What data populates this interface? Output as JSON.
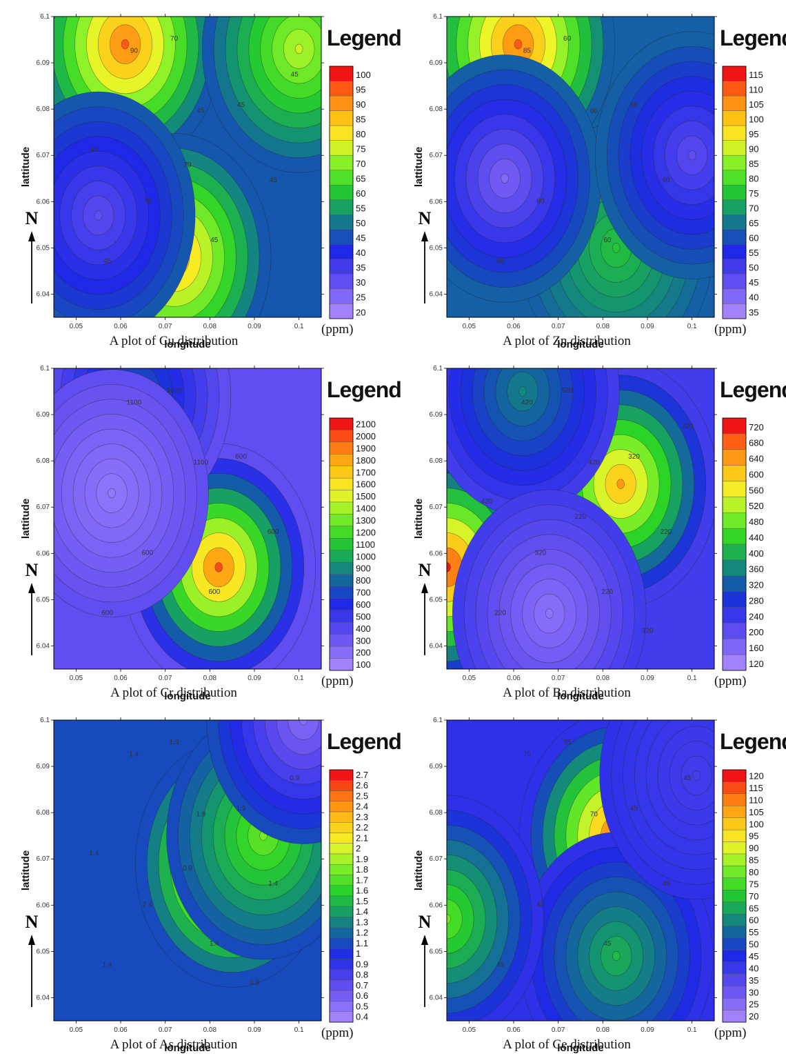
{
  "common": {
    "xlabel": "longitude",
    "ylabel": "lattitude",
    "legend_title": "Legend",
    "unit": "(ppm)",
    "north": "N",
    "x_ticks": [
      "0.05",
      "0.06",
      "0.07",
      "0.08",
      "0.09",
      "0.1"
    ],
    "y_ticks": [
      "6.1",
      "6.09",
      "6.08",
      "6.07",
      "6.06",
      "6.05",
      "6.04"
    ]
  },
  "chart_data": [
    {
      "type": "heatmap",
      "title": "A plot of Cu distribution",
      "xlabel": "longitude",
      "ylabel": "lattitude",
      "unit": "(ppm)",
      "xlim": [
        0.045,
        0.105
      ],
      "ylim": [
        6.035,
        6.1
      ],
      "legend_levels": [
        100,
        95,
        90,
        85,
        80,
        75,
        70,
        65,
        60,
        55,
        50,
        45,
        40,
        35,
        30,
        25,
        20
      ],
      "contour_labels": [
        "90",
        "70",
        "45",
        "45",
        "70",
        "45",
        "45",
        "45",
        "45",
        "70",
        "45"
      ],
      "hotspots": [
        {
          "x": 0.061,
          "y": 6.094,
          "value": 95
        },
        {
          "x": 0.072,
          "y": 6.048,
          "value": 90
        },
        {
          "x": 0.1,
          "y": 6.093,
          "value": 75
        },
        {
          "x": 0.055,
          "y": 6.057,
          "value": 30
        }
      ],
      "background_value": 46
    },
    {
      "type": "heatmap",
      "title": "A plot of Zn distribution",
      "xlabel": "longitude",
      "ylabel": "lattitude",
      "unit": "(ppm)",
      "xlim": [
        0.045,
        0.105
      ],
      "ylim": [
        6.035,
        6.1
      ],
      "legend_levels": [
        115,
        110,
        105,
        100,
        95,
        90,
        85,
        80,
        75,
        70,
        65,
        60,
        55,
        50,
        45,
        40,
        35
      ],
      "contour_labels": [
        "85",
        "60",
        "60",
        "60",
        "60",
        "60",
        "60",
        "60"
      ],
      "hotspots": [
        {
          "x": 0.061,
          "y": 6.094,
          "value": 110
        },
        {
          "x": 0.083,
          "y": 6.05,
          "value": 75
        },
        {
          "x": 0.058,
          "y": 6.065,
          "value": 40
        },
        {
          "x": 0.1,
          "y": 6.07,
          "value": 45
        }
      ],
      "background_value": 62
    },
    {
      "type": "heatmap",
      "title": "A plot of Cr distribution",
      "xlabel": "longitude",
      "ylabel": "lattitude",
      "unit": "(ppm)",
      "xlim": [
        0.045,
        0.105
      ],
      "ylim": [
        6.035,
        6.1
      ],
      "legend_levels": [
        2100,
        2000,
        1900,
        1800,
        1700,
        1600,
        1500,
        1400,
        1300,
        1200,
        1100,
        1000,
        900,
        800,
        700,
        600,
        500,
        400,
        300,
        200,
        100
      ],
      "contour_labels": [
        "1100",
        "1600",
        "1100",
        "600",
        "600",
        "600",
        "600",
        "600"
      ],
      "hotspots": [
        {
          "x": 0.082,
          "y": 6.057,
          "value": 2000
        },
        {
          "x": 0.063,
          "y": 6.094,
          "value": 800
        },
        {
          "x": 0.058,
          "y": 6.073,
          "value": 150
        }
      ],
      "background_value": 350
    },
    {
      "type": "heatmap",
      "title": "A plot of Ba distribution",
      "xlabel": "longitude",
      "ylabel": "lattitude",
      "unit": "(ppm)",
      "xlim": [
        0.045,
        0.105
      ],
      "ylim": [
        6.035,
        6.1
      ],
      "legend_levels": [
        720,
        680,
        640,
        600,
        560,
        520,
        480,
        440,
        400,
        360,
        320,
        280,
        240,
        200,
        160,
        120
      ],
      "contour_labels": [
        "420",
        "520",
        "420",
        "320",
        "320",
        "220",
        "220",
        "220",
        "220",
        "220",
        "420",
        "320"
      ],
      "hotspots": [
        {
          "x": 0.084,
          "y": 6.075,
          "value": 640
        },
        {
          "x": 0.045,
          "y": 6.057,
          "value": 720
        },
        {
          "x": 0.062,
          "y": 6.095,
          "value": 360
        },
        {
          "x": 0.068,
          "y": 6.047,
          "value": 140
        }
      ],
      "background_value": 230
    },
    {
      "type": "heatmap",
      "title": "A plot of As distribution",
      "xlabel": "longitude",
      "ylabel": "lattitude",
      "unit": "(ppm)",
      "xlim": [
        0.045,
        0.105
      ],
      "ylim": [
        6.035,
        6.1
      ],
      "legend_levels": [
        2.7,
        2.6,
        2.5,
        2.4,
        2.3,
        2.2,
        2.1,
        2,
        1.9,
        1.8,
        1.7,
        1.6,
        1.5,
        1.4,
        1.3,
        1.2,
        1.1,
        1,
        0.9,
        0.8,
        0.7,
        0.6,
        0.5,
        0.4
      ],
      "contour_labels": [
        "1.4",
        "1.9",
        "1.9",
        "1.9",
        "2.4",
        "1.4",
        "1.4",
        "1.4",
        "0.9",
        "0.9",
        "1.4",
        "0.9"
      ],
      "hotspots": [
        {
          "x": 0.085,
          "y": 6.069,
          "value": 2.6
        },
        {
          "x": 0.092,
          "y": 6.075,
          "value": 1.8
        },
        {
          "x": 0.101,
          "y": 6.1,
          "value": 0.5
        }
      ],
      "background_value": 1.1
    },
    {
      "type": "heatmap",
      "title": "A plot of Ce distribution",
      "xlabel": "longitude",
      "ylabel": "lattitude",
      "unit": "(ppm)",
      "xlim": [
        0.045,
        0.105
      ],
      "ylim": [
        6.035,
        6.1
      ],
      "legend_levels": [
        120,
        115,
        110,
        105,
        100,
        95,
        90,
        85,
        80,
        75,
        70,
        65,
        60,
        55,
        50,
        45,
        40,
        35,
        30,
        25,
        20
      ],
      "contour_labels": [
        "70",
        "95",
        "70",
        "45",
        "45",
        "45",
        "45",
        "45",
        "45"
      ],
      "hotspots": [
        {
          "x": 0.083,
          "y": 6.075,
          "value": 115
        },
        {
          "x": 0.083,
          "y": 6.049,
          "value": 68
        },
        {
          "x": 0.045,
          "y": 6.057,
          "value": 80
        },
        {
          "x": 0.101,
          "y": 6.088,
          "value": 38
        }
      ],
      "background_value": 42
    }
  ]
}
